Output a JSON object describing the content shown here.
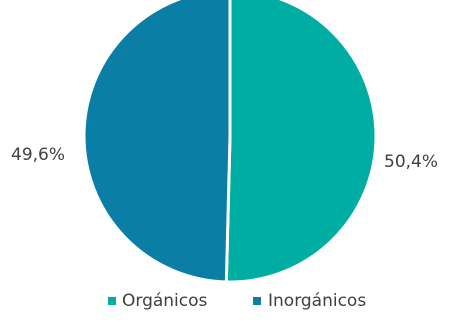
{
  "chart_data": {
    "type": "pie",
    "categories": [
      "Orgánicos",
      "Inorgánicos"
    ],
    "values": [
      50.4,
      49.6
    ],
    "labels": [
      "50,4%",
      "49,6%"
    ],
    "colors": [
      "#00ADA2",
      "#0A7EA4"
    ],
    "legend_position": "bottom",
    "start_angle_deg": 0,
    "direction": "clockwise"
  }
}
